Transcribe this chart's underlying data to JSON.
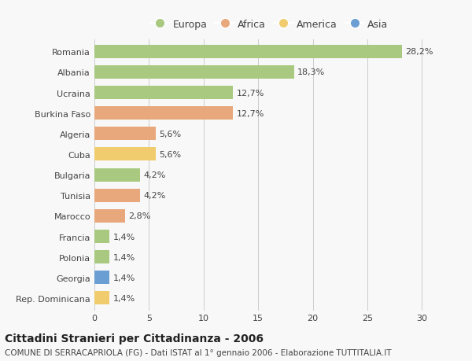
{
  "categories": [
    "Romania",
    "Albania",
    "Ucraina",
    "Burkina Faso",
    "Algeria",
    "Cuba",
    "Bulgaria",
    "Tunisia",
    "Marocco",
    "Francia",
    "Polonia",
    "Georgia",
    "Rep. Dominicana"
  ],
  "values": [
    28.2,
    18.3,
    12.7,
    12.7,
    5.6,
    5.6,
    4.2,
    4.2,
    2.8,
    1.4,
    1.4,
    1.4,
    1.4
  ],
  "labels": [
    "28,2%",
    "18,3%",
    "12,7%",
    "12,7%",
    "5,6%",
    "5,6%",
    "4,2%",
    "4,2%",
    "2,8%",
    "1,4%",
    "1,4%",
    "1,4%",
    "1,4%"
  ],
  "colors": [
    "#a8c97f",
    "#a8c97f",
    "#a8c97f",
    "#e8a87c",
    "#e8a87c",
    "#f0cc6e",
    "#a8c97f",
    "#e8a87c",
    "#e8a87c",
    "#a8c97f",
    "#a8c97f",
    "#6b9fd4",
    "#f0cc6e"
  ],
  "legend_labels": [
    "Europa",
    "Africa",
    "America",
    "Asia"
  ],
  "legend_colors": [
    "#a8c97f",
    "#e8a87c",
    "#f0cc6e",
    "#6b9fd4"
  ],
  "xlim": [
    0,
    32
  ],
  "xticks": [
    0,
    5,
    10,
    15,
    20,
    25,
    30
  ],
  "title": "Cittadini Stranieri per Cittadinanza - 2006",
  "subtitle": "COMUNE DI SERRACAPRIOLA (FG) - Dati ISTAT al 1° gennaio 2006 - Elaborazione TUTTITALIA.IT",
  "background_color": "#f8f8f8",
  "bar_height": 0.65,
  "title_fontsize": 10,
  "subtitle_fontsize": 7.5,
  "tick_fontsize": 8,
  "label_fontsize": 8,
  "legend_fontsize": 9
}
